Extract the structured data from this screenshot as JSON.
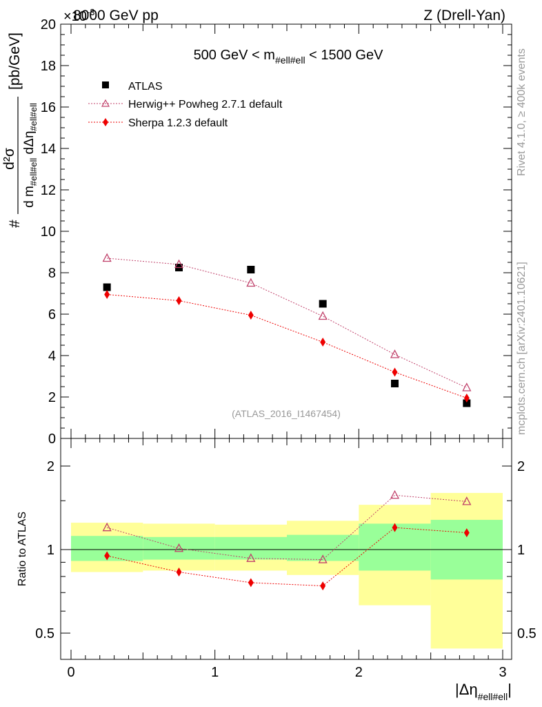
{
  "header": {
    "left": "8000 GeV pp",
    "right": "Z (Drell-Yan)",
    "exponent": "×10",
    "exponent_power": "-3"
  },
  "side_labels": {
    "rivet": "Rivet 4.1.0, ≥ 400k events",
    "mcplots": "mcplots.cern.ch [arXiv:2401.10621]"
  },
  "chart_data": [
    {
      "type": "scatter",
      "panel": "main",
      "title": "500 GeV < m",
      "title_sub": "#ell#ell",
      "title_rest": " < 1500 GeV",
      "ylabel": "d²σ / (d m_#ell#ell dΔη_#ell#ell) [pb/GeV]",
      "ylim": [
        0,
        20
      ],
      "yticks": [
        0,
        2,
        4,
        6,
        8,
        10,
        12,
        14,
        16,
        18,
        20
      ],
      "yscale_note": "×10^-3",
      "xlim": [
        0,
        3
      ],
      "watermark": "(ATLAS_2016_I1467454)",
      "x": [
        0.25,
        0.75,
        1.25,
        1.75,
        2.25,
        2.75
      ],
      "series": [
        {
          "name": "ATLAS",
          "role": "data",
          "color": "#000000",
          "marker": "square",
          "values": [
            7.3,
            8.25,
            8.15,
            6.5,
            2.65,
            1.7
          ]
        },
        {
          "name": "Herwig++ Powheg 2.7.1 default",
          "role": "mc",
          "color": "#c0406a",
          "marker": "triangle-open",
          "values": [
            8.7,
            8.4,
            7.5,
            5.9,
            4.05,
            2.45
          ]
        },
        {
          "name": "Sherpa 1.2.3 default",
          "role": "mc",
          "color": "#ee0000",
          "marker": "diamond",
          "values": [
            6.95,
            6.65,
            5.95,
            4.65,
            3.2,
            1.95
          ]
        }
      ]
    },
    {
      "type": "scatter",
      "panel": "ratio",
      "ylabel": "Ratio to ATLAS",
      "xlabel": "|Δη",
      "xlabel_sub": "#ell#ell",
      "xlabel_end": "|",
      "ylim": [
        0.4,
        2.3
      ],
      "yticks": [
        0.5,
        1,
        2
      ],
      "ytick_labels": [
        "0.5",
        "1",
        "2"
      ],
      "xlim": [
        0,
        3
      ],
      "xticks": [
        0,
        1,
        2,
        3
      ],
      "xtick_labels": [
        "0",
        "1",
        "2",
        "3"
      ],
      "bins": [
        [
          0,
          0.5
        ],
        [
          0.5,
          1
        ],
        [
          1,
          1.5
        ],
        [
          1.5,
          2
        ],
        [
          2,
          2.5
        ],
        [
          2.5,
          3
        ]
      ],
      "band_stat": [
        [
          0.91,
          1.12
        ],
        [
          0.92,
          1.11
        ],
        [
          0.92,
          1.11
        ],
        [
          0.91,
          1.13
        ],
        [
          0.84,
          1.24
        ],
        [
          0.78,
          1.28
        ]
      ],
      "band_total": [
        [
          0.83,
          1.25
        ],
        [
          0.84,
          1.24
        ],
        [
          0.84,
          1.23
        ],
        [
          0.81,
          1.27
        ],
        [
          0.63,
          1.45
        ],
        [
          0.44,
          1.6
        ]
      ],
      "band_colors": {
        "stat": "#99ff99",
        "total": "#ffff99"
      },
      "series": [
        {
          "name": "Herwig++ Powheg 2.7.1 default",
          "color": "#c0406a",
          "marker": "triangle-open",
          "values": [
            1.2,
            1.01,
            0.93,
            0.92,
            1.57,
            1.49
          ]
        },
        {
          "name": "Sherpa 1.2.3 default",
          "color": "#ee0000",
          "marker": "diamond",
          "values": [
            0.95,
            0.83,
            0.76,
            0.74,
            1.2,
            1.15
          ]
        }
      ]
    }
  ]
}
